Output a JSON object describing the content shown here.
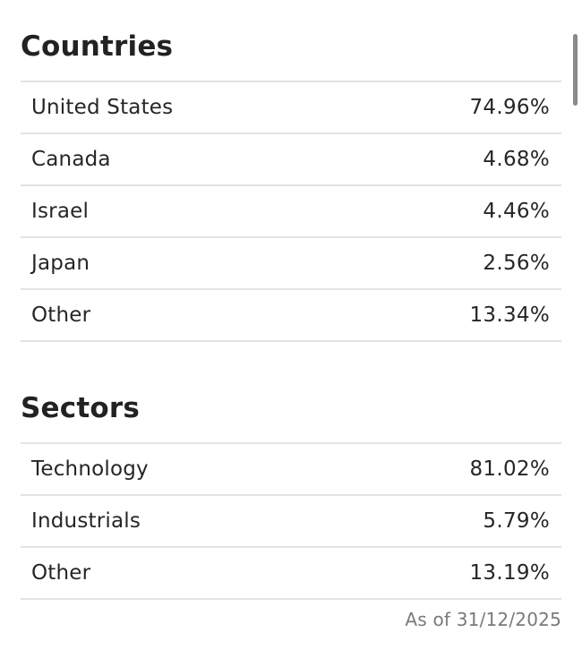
{
  "countries": {
    "title": "Countries",
    "rows": [
      {
        "label": "United States",
        "value": "74.96%"
      },
      {
        "label": "Canada",
        "value": "4.68%"
      },
      {
        "label": "Israel",
        "value": "4.46%"
      },
      {
        "label": "Japan",
        "value": "2.56%"
      },
      {
        "label": "Other",
        "value": "13.34%"
      }
    ]
  },
  "sectors": {
    "title": "Sectors",
    "rows": [
      {
        "label": "Technology",
        "value": "81.02%"
      },
      {
        "label": "Industrials",
        "value": "5.79%"
      },
      {
        "label": "Other",
        "value": "13.19%"
      }
    ]
  },
  "as_of": "As of 31/12/2025"
}
